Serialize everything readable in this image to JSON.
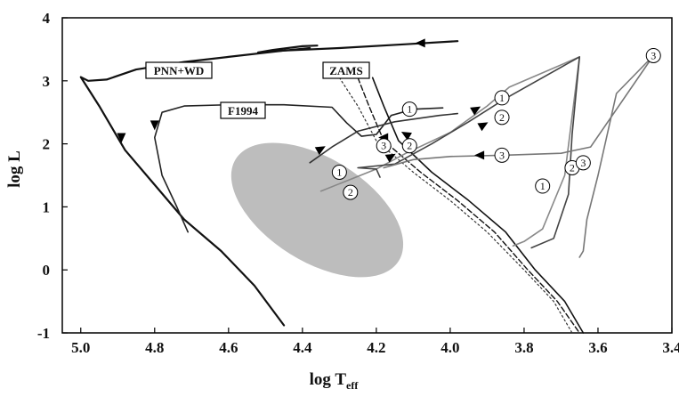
{
  "chart_data": {
    "type": "line",
    "x_axis": {
      "label_main": "log T",
      "label_sub": "eff",
      "range": [
        5.05,
        3.4
      ],
      "reversed": true,
      "ticks": [
        5.0,
        4.8,
        4.6,
        4.4,
        4.2,
        4.0,
        3.8,
        3.6,
        3.4
      ],
      "tick_labels": [
        "5.0",
        "4.8",
        "4.6",
        "4.4",
        "4.2",
        "4.0",
        "3.8",
        "3.6",
        "3.4"
      ]
    },
    "y_axis": {
      "label": "log L",
      "range": [
        -1,
        4
      ],
      "ticks": [
        -1,
        0,
        1,
        2,
        3,
        4
      ],
      "tick_labels": [
        "-1",
        "0",
        "1",
        "2",
        "3",
        "4"
      ]
    },
    "grid": false,
    "labels": {
      "pnn_wd": "PNN+WD",
      "zams": "ZAMS",
      "f1994": "F1994"
    },
    "region": {
      "center": [
        4.36,
        0.95
      ],
      "color": "#bdbdbd"
    },
    "series": [
      {
        "style": "solid-thick",
        "color": "#111111",
        "points": [
          [
            3.98,
            3.63
          ],
          [
            4.12,
            3.58
          ],
          [
            4.3,
            3.52
          ],
          [
            4.45,
            3.48
          ],
          [
            4.6,
            3.38
          ],
          [
            4.72,
            3.3
          ],
          [
            4.85,
            3.18
          ],
          [
            4.93,
            3.02
          ],
          [
            4.98,
            3.0
          ],
          [
            5.0,
            3.06
          ],
          [
            4.95,
            2.6
          ],
          [
            4.88,
            1.9
          ],
          [
            4.8,
            1.35
          ],
          [
            4.72,
            0.8
          ],
          [
            4.62,
            0.3
          ],
          [
            4.53,
            -0.25
          ],
          [
            4.45,
            -0.88
          ]
        ]
      },
      {
        "style": "solid-thin",
        "color": "#111111",
        "points": [
          [
            4.36,
            3.56
          ],
          [
            4.4,
            3.55
          ],
          [
            4.48,
            3.49
          ],
          [
            4.52,
            3.45
          ],
          [
            4.45,
            3.48
          ],
          [
            4.38,
            3.52
          ]
        ]
      },
      {
        "style": "solid",
        "color": "#222222",
        "points": [
          [
            4.02,
            2.57
          ],
          [
            4.1,
            2.55
          ],
          [
            4.16,
            2.45
          ],
          [
            4.2,
            2.15
          ],
          [
            4.24,
            2.12
          ],
          [
            4.28,
            2.33
          ],
          [
            4.32,
            2.58
          ],
          [
            4.45,
            2.62
          ],
          [
            4.6,
            2.62
          ],
          [
            4.72,
            2.6
          ],
          [
            4.78,
            2.5
          ],
          [
            4.8,
            2.1
          ],
          [
            4.78,
            1.5
          ],
          [
            4.74,
            1.0
          ],
          [
            4.71,
            0.6
          ]
        ]
      },
      {
        "style": "dotted",
        "color": "#333333",
        "points": [
          [
            4.3,
            3.05
          ],
          [
            4.25,
            2.6
          ],
          [
            4.2,
            2.05
          ],
          [
            4.1,
            1.55
          ],
          [
            4.0,
            1.1
          ],
          [
            3.9,
            0.6
          ],
          [
            3.8,
            0.0
          ],
          [
            3.72,
            -0.5
          ],
          [
            3.67,
            -1.0
          ]
        ]
      },
      {
        "style": "dashed",
        "color": "#111111",
        "points": [
          [
            4.25,
            3.05
          ],
          [
            4.22,
            2.6
          ],
          [
            4.18,
            2.05
          ],
          [
            4.08,
            1.55
          ],
          [
            3.98,
            1.1
          ],
          [
            3.88,
            0.6
          ],
          [
            3.79,
            0.0
          ],
          [
            3.71,
            -0.5
          ],
          [
            3.65,
            -1.0
          ]
        ]
      },
      {
        "style": "solid",
        "color": "#111111",
        "points": [
          [
            4.21,
            3.05
          ],
          [
            4.18,
            2.6
          ],
          [
            4.14,
            2.05
          ],
          [
            4.05,
            1.55
          ],
          [
            3.95,
            1.1
          ],
          [
            3.85,
            0.6
          ],
          [
            3.77,
            0.0
          ],
          [
            3.69,
            -0.5
          ],
          [
            3.64,
            -1.0
          ]
        ]
      },
      {
        "style": "solid-grey",
        "color": "#888888",
        "points": [
          [
            4.35,
            1.25
          ],
          [
            4.2,
            1.6
          ],
          [
            4.12,
            1.85
          ],
          [
            4.0,
            2.18
          ],
          [
            3.9,
            2.6
          ],
          [
            3.84,
            2.9
          ],
          [
            3.65,
            3.38
          ],
          [
            3.69,
            1.5
          ],
          [
            3.75,
            0.65
          ],
          [
            3.8,
            0.45
          ],
          [
            3.83,
            0.38
          ]
        ]
      },
      {
        "style": "solid",
        "color": "#444444",
        "points": [
          [
            4.19,
            1.47
          ],
          [
            4.2,
            1.6
          ],
          [
            4.25,
            1.62
          ],
          [
            4.15,
            1.68
          ],
          [
            4.05,
            2.0
          ],
          [
            3.95,
            2.35
          ],
          [
            3.85,
            2.72
          ],
          [
            3.65,
            3.38
          ],
          [
            3.67,
            2.15
          ],
          [
            3.68,
            1.2
          ],
          [
            3.72,
            0.5
          ],
          [
            3.78,
            0.35
          ]
        ]
      },
      {
        "style": "solid",
        "color": "#333333",
        "points": [
          [
            4.38,
            1.7
          ],
          [
            4.32,
            1.95
          ],
          [
            4.25,
            2.2
          ],
          [
            4.15,
            2.35
          ],
          [
            4.03,
            2.45
          ],
          [
            3.98,
            2.48
          ]
        ]
      },
      {
        "style": "solid-grey",
        "color": "#777777",
        "points": [
          [
            4.18,
            1.62
          ],
          [
            4.1,
            1.75
          ],
          [
            4.0,
            1.8
          ],
          [
            3.85,
            1.82
          ],
          [
            3.7,
            1.85
          ],
          [
            3.62,
            1.95
          ],
          [
            3.45,
            3.4
          ],
          [
            3.55,
            2.8
          ],
          [
            3.6,
            1.5
          ],
          [
            3.63,
            0.8
          ],
          [
            3.64,
            0.3
          ],
          [
            3.65,
            0.2
          ]
        ]
      }
    ],
    "arrows": [
      {
        "at": [
          4.08,
          3.6
        ],
        "dir": "left"
      },
      {
        "at": [
          4.89,
          2.1
        ],
        "dir": "down"
      },
      {
        "at": [
          4.8,
          2.3
        ],
        "dir": "down"
      },
      {
        "at": [
          4.18,
          2.1
        ],
        "dir": "left"
      },
      {
        "at": [
          4.12,
          2.15
        ],
        "dir": "up-left"
      },
      {
        "at": [
          3.93,
          2.55
        ],
        "dir": "up-right"
      },
      {
        "at": [
          3.91,
          2.3
        ],
        "dir": "up-right"
      },
      {
        "at": [
          3.92,
          1.82
        ],
        "dir": "left"
      },
      {
        "at": [
          4.35,
          1.92
        ],
        "dir": "up-right"
      },
      {
        "at": [
          4.16,
          1.8
        ],
        "dir": "up-right"
      }
    ],
    "markers": [
      {
        "text": "1",
        "at": [
          4.11,
          2.55
        ]
      },
      {
        "text": "1",
        "at": [
          3.86,
          2.73
        ]
      },
      {
        "text": "2",
        "at": [
          3.86,
          2.42
        ]
      },
      {
        "text": "3",
        "at": [
          4.18,
          1.97
        ]
      },
      {
        "text": "2",
        "at": [
          4.11,
          1.97
        ]
      },
      {
        "text": "3",
        "at": [
          3.86,
          1.82
        ]
      },
      {
        "text": "1",
        "at": [
          4.3,
          1.55
        ]
      },
      {
        "text": "2",
        "at": [
          4.27,
          1.23
        ]
      },
      {
        "text": "1",
        "at": [
          3.75,
          1.33
        ]
      },
      {
        "text": "2",
        "at": [
          3.67,
          1.62
        ]
      },
      {
        "text": "3",
        "at": [
          3.64,
          1.7
        ]
      },
      {
        "text": "3",
        "at": [
          3.45,
          3.4
        ]
      }
    ]
  }
}
